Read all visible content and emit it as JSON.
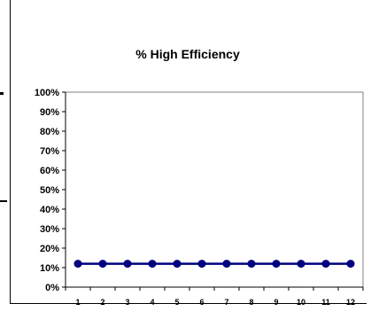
{
  "chart_data": {
    "type": "line",
    "title": "% High Efficiency",
    "xlabel": "",
    "ylabel": "",
    "categories": [
      "1",
      "2",
      "3",
      "4",
      "5",
      "6",
      "7",
      "8",
      "9",
      "10",
      "11",
      "12"
    ],
    "series": [
      {
        "values": [
          12,
          12,
          12,
          12,
          12,
          12,
          12,
          12,
          12,
          12,
          12,
          12
        ],
        "color": "#000080"
      }
    ],
    "ylim": [
      0,
      100
    ],
    "y_ticks": [
      "0%",
      "10%",
      "20%",
      "30%",
      "40%",
      "50%",
      "60%",
      "70%",
      "80%",
      "90%",
      "100%"
    ],
    "grid": false,
    "legend": "none"
  }
}
